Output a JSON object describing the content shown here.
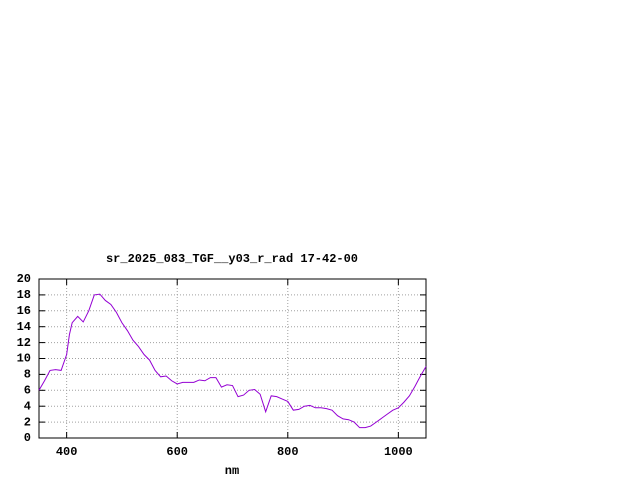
{
  "chart_data": {
    "type": "line",
    "title": "sr_2025_083_TGF__y03_r_rad 17-42-00",
    "x_label": "nm",
    "x": [
      350,
      360,
      370,
      380,
      390,
      400,
      405,
      410,
      420,
      430,
      440,
      450,
      460,
      470,
      480,
      490,
      500,
      510,
      520,
      530,
      540,
      550,
      560,
      570,
      580,
      590,
      600,
      610,
      620,
      630,
      640,
      650,
      660,
      670,
      680,
      690,
      700,
      710,
      720,
      730,
      740,
      750,
      760,
      770,
      780,
      790,
      800,
      810,
      820,
      830,
      840,
      850,
      860,
      870,
      880,
      890,
      900,
      910,
      920,
      930,
      940,
      950,
      960,
      970,
      980,
      990,
      1000,
      1010,
      1020,
      1030,
      1040,
      1050
    ],
    "series": [
      {
        "color": "#9400d3",
        "values": [
          6.0,
          7.2,
          8.5,
          8.6,
          8.5,
          10.5,
          13.0,
          14.5,
          15.3,
          14.6,
          16.0,
          18.0,
          18.1,
          17.3,
          16.8,
          15.8,
          14.5,
          13.5,
          12.3,
          11.5,
          10.5,
          9.8,
          8.5,
          7.7,
          7.8,
          7.2,
          6.8,
          7.0,
          7.0,
          7.0,
          7.3,
          7.2,
          7.6,
          7.6,
          6.4,
          6.7,
          6.6,
          5.2,
          5.4,
          6.0,
          6.1,
          5.5,
          3.3,
          5.3,
          5.2,
          4.9,
          4.6,
          3.5,
          3.6,
          4.0,
          4.1,
          3.8,
          3.8,
          3.7,
          3.5,
          2.8,
          2.4,
          2.3,
          2.0,
          1.3,
          1.3,
          1.5,
          2.0,
          2.5,
          3.0,
          3.5,
          3.8,
          4.5,
          5.3,
          6.5,
          7.8,
          9.0
        ]
      }
    ],
    "xlim": [
      350,
      1050
    ],
    "xticks": [
      400,
      600,
      800,
      1000
    ],
    "ylim": [
      0,
      20
    ],
    "yticks": [
      0,
      2,
      4,
      6,
      8,
      10,
      12,
      14,
      16,
      18,
      20
    ],
    "grid": true
  }
}
